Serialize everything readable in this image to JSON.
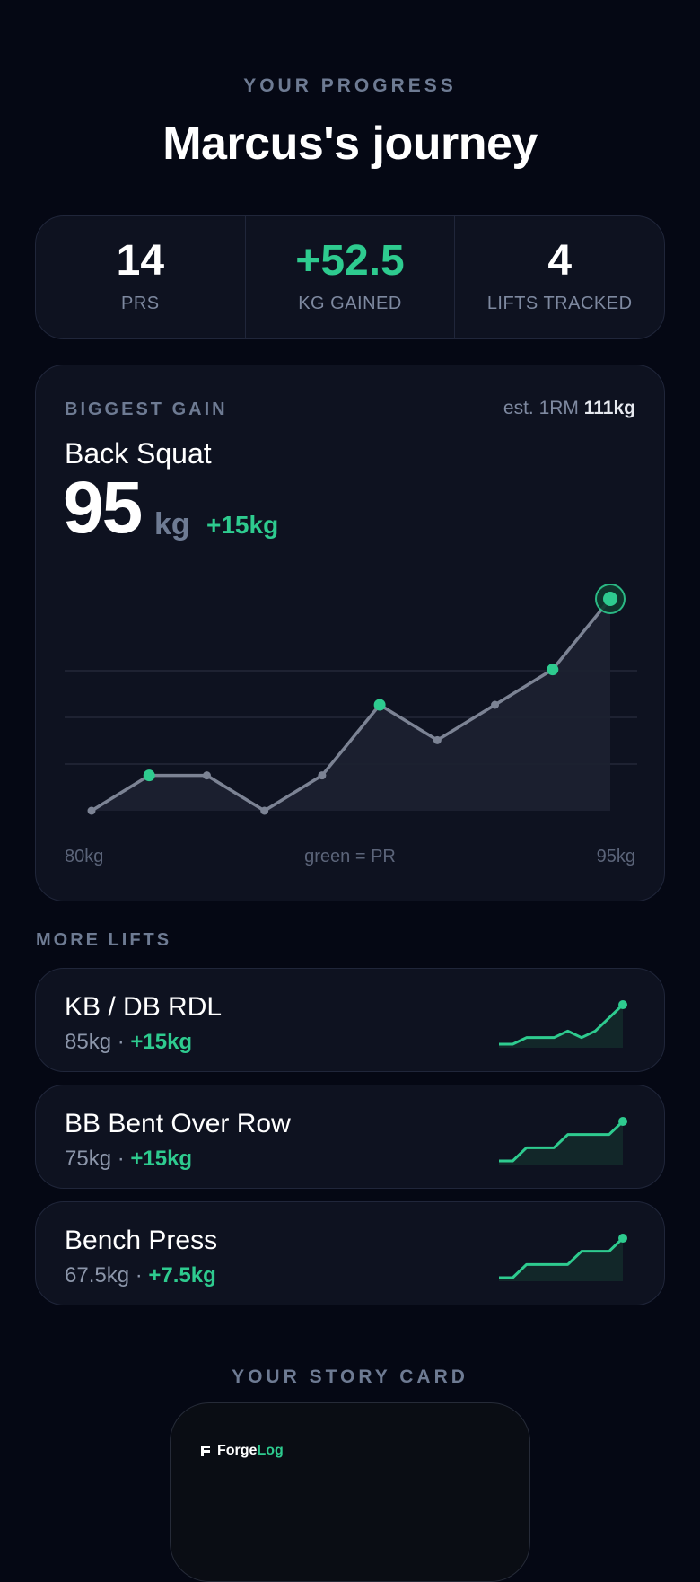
{
  "header": {
    "eyebrow": "YOUR PROGRESS",
    "title": "Marcus's journey"
  },
  "stats": [
    {
      "value": "14",
      "label": "PRS"
    },
    {
      "value": "+52.5",
      "label": "KG GAINED"
    },
    {
      "value": "4",
      "label": "LIFTS TRACKED"
    }
  ],
  "biggest_gain": {
    "label": "BIGGEST GAIN",
    "est_prefix": "est. 1RM",
    "est_value": "111kg",
    "lift": "Back Squat",
    "value": "95",
    "unit": "kg",
    "delta": "+15kg",
    "axis_left": "80kg",
    "axis_mid": "green = PR",
    "axis_right": "95kg"
  },
  "chart_data": {
    "type": "line",
    "title": "",
    "xlabel": "",
    "ylabel": "",
    "ylim": [
      80,
      95
    ],
    "series": [
      {
        "values": [
          80,
          82.5,
          82.5,
          80,
          82.5,
          87.5,
          85,
          87.5,
          90,
          95
        ],
        "pr": [
          false,
          true,
          false,
          false,
          false,
          true,
          false,
          false,
          true,
          true
        ]
      }
    ],
    "grid": true,
    "colors": {
      "line": "#7c8394",
      "pr": "#2ecb8f",
      "fill": "#1d2131"
    }
  },
  "more_lifts": {
    "label": "MORE LIFTS",
    "items": [
      {
        "name": "KB / DB RDL",
        "weight": "85kg",
        "sep": " · ",
        "delta": "+15kg",
        "spark": [
          70,
          70,
          72.5,
          72.5,
          72.5,
          75,
          72.5,
          75,
          80,
          85
        ]
      },
      {
        "name": "BB Bent Over Row",
        "weight": "75kg",
        "sep": " · ",
        "delta": "+15kg",
        "spark": [
          60,
          60,
          65,
          65,
          65,
          70,
          70,
          70,
          70,
          75
        ]
      },
      {
        "name": "Bench Press",
        "weight": "67.5kg",
        "sep": " · ",
        "delta": "+7.5kg",
        "spark": [
          60,
          60,
          62.5,
          62.5,
          62.5,
          62.5,
          65,
          65,
          65,
          67.5
        ]
      }
    ]
  },
  "story": {
    "label": "YOUR STORY CARD",
    "brand_a": "Forge",
    "brand_b": "Log"
  }
}
